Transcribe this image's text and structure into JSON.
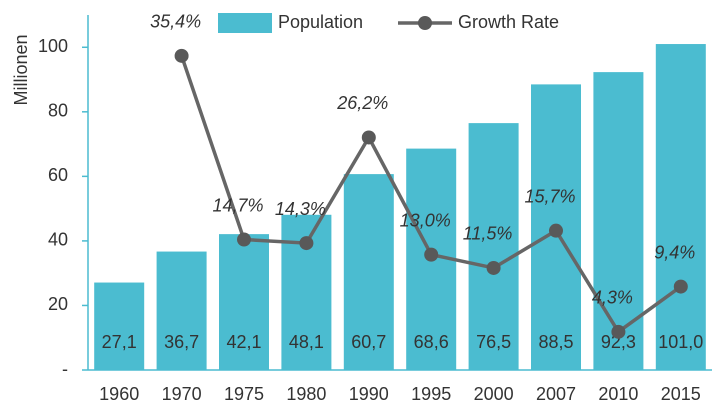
{
  "chart_data": {
    "type": "bar",
    "y_label": "Millionen",
    "categories": [
      "1960",
      "1970",
      "1975",
      "1980",
      "1990",
      "1995",
      "2000",
      "2007",
      "2010",
      "2015"
    ],
    "series": [
      {
        "name": "Population",
        "color": "#4bbcd0",
        "type": "bar",
        "values": [
          27.1,
          36.7,
          42.1,
          48.1,
          60.7,
          68.6,
          76.5,
          88.5,
          92.3,
          101.0
        ],
        "value_labels": [
          "27,1",
          "36,7",
          "42,1",
          "48,1",
          "60,7",
          "68,6",
          "76,5",
          "88,5",
          "92,3",
          "101,0"
        ]
      },
      {
        "name": "Growth Rate",
        "color": "#666666",
        "type": "line",
        "axis": "y2",
        "values": [
          null,
          35.4,
          14.7,
          14.3,
          26.2,
          13.0,
          11.5,
          15.7,
          4.3,
          9.4
        ],
        "value_labels": [
          null,
          "35,4%",
          "14,7%",
          "14,3%",
          "26,2%",
          "13,0%",
          "11,5%",
          "15,7%",
          "4,3%",
          "9,4%"
        ]
      }
    ],
    "ylim": [
      0,
      110
    ],
    "yticks": [
      {
        "value": 0,
        "label": "-"
      },
      20,
      40,
      60,
      80,
      100
    ],
    "y2lim": [
      0,
      40
    ],
    "legend": "top"
  }
}
